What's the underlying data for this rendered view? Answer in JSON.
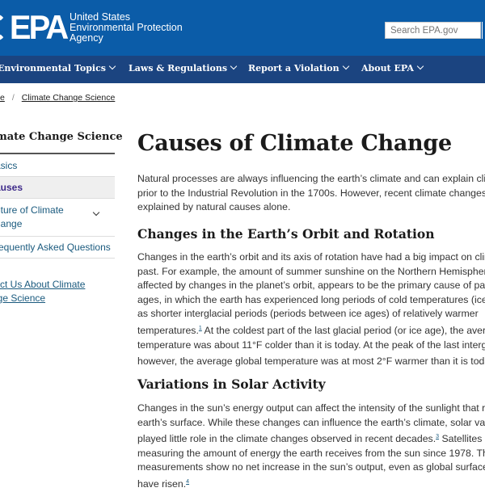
{
  "header": {
    "logo_text": "EPA",
    "agency_lines": [
      "United States",
      "Environmental Protection",
      "Agency"
    ],
    "search_placeholder": "Search EPA.gov"
  },
  "nav": [
    {
      "label": "Environmental Topics"
    },
    {
      "label": "Laws & Regulations"
    },
    {
      "label": "Report a Violation"
    },
    {
      "label": "About EPA"
    }
  ],
  "breadcrumb": {
    "home": "e",
    "current": "Climate Change Science",
    "sep": "/"
  },
  "sidebar": {
    "title": "imate Change Science",
    "items": [
      {
        "label": "asics"
      },
      {
        "label": "auses"
      },
      {
        "label_lines": [
          "uture of Climate",
          "hange"
        ]
      },
      {
        "label": "requently Asked Questions"
      }
    ],
    "contact_lines": [
      "tact Us About Climate",
      "nge Science"
    ]
  },
  "main": {
    "title": "Causes of Climate Change",
    "intro": [
      "Natural processes are always influencing the earth’s climate and can explain climate cha",
      "prior to the Industrial Revolution in the 1700s. However, recent climate changes cannot b",
      "explained by natural causes alone."
    ],
    "section1": {
      "heading": "Changes in the Earth’s Orbit and Rotation",
      "lines": [
        "Changes in the earth’s orbit and its axis of rotation have had a big impact on climate in th",
        "past. For example, the amount of summer sunshine on the Northern Hemisphere, which",
        "affected by changes in the planet’s orbit, appears to be the primary cause of past cycles",
        "ages, in which the earth has experienced long periods of cold temperatures (ice ages), as",
        "as shorter interglacial periods (periods between ice ages) of relatively warmer"
      ],
      "line6_a": "temperatures.",
      "fn1": "1",
      "line6_b": " At the coldest part of the last glacial period (or ice age), the average glob",
      "line7": "temperature was about 11°F colder than it is today. At the peak of the last interglacial pe",
      "line8": "however, the average global temperature was at most 2°F warmer than it is today.",
      "fn2": "2"
    },
    "section2": {
      "heading": "Variations in Solar Activity",
      "lines": [
        "Changes in the sun’s energy output can affect the intensity of the sunlight that reaches t",
        "earth’s surface. While these changes can influence the earth’s climate, solar variations ha"
      ],
      "line3_a": "played little role in the climate changes observed in recent decades.",
      "fn3": "3",
      "line3_b": " Satellites have bee",
      "line4": "measuring the amount of energy the earth receives from the sun since 1978. These",
      "line5": "measurements show no net increase in the sun’s output, even as global surface tempera",
      "line6": "have risen.",
      "fn4": "4"
    }
  },
  "colors": {
    "header_blue": "#0b5ca8",
    "nav_blue": "#1b4480",
    "link": "#1a5a7e",
    "active_item": "#3e2a8a"
  }
}
